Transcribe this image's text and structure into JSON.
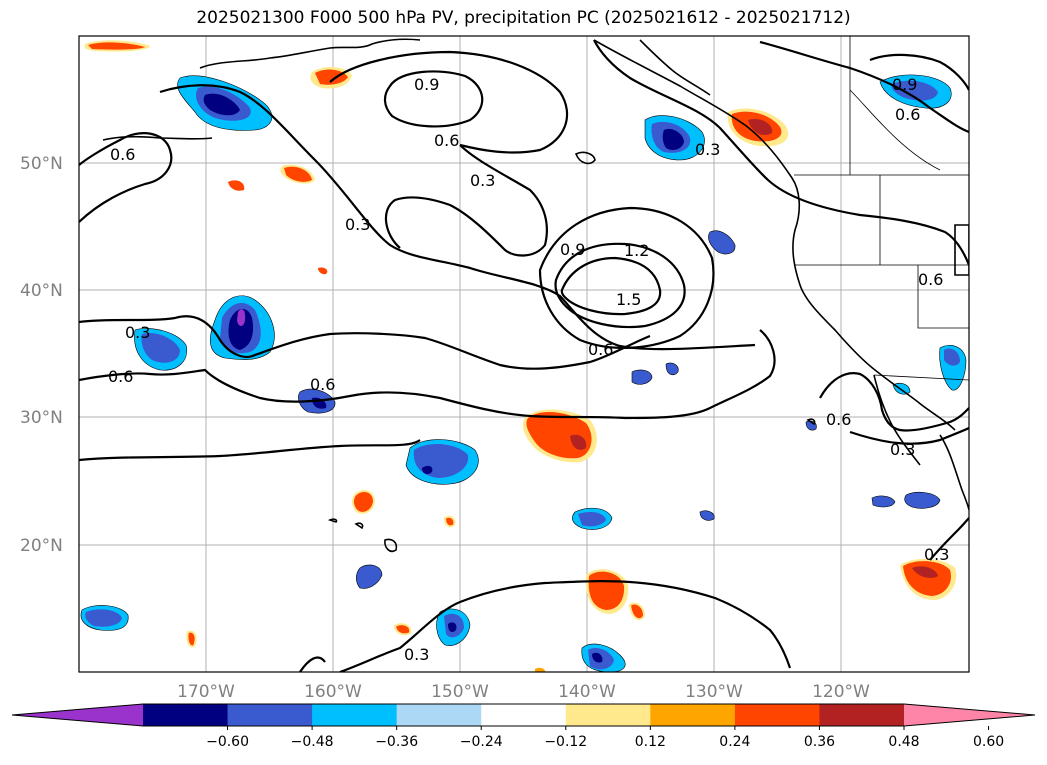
{
  "title": "2025021300 F000 500 hPa PV, precipitation PC (2025021612 - 2025021712)",
  "lat_ticks": [
    "50°N",
    "40°N",
    "30°N",
    "20°N"
  ],
  "lon_ticks": [
    "170°W",
    "160°W",
    "150°W",
    "140°W",
    "130°W",
    "120°W"
  ],
  "colorbar": {
    "ticks": [
      "−0.60",
      "−0.48",
      "−0.36",
      "−0.24",
      "−0.12",
      "0.12",
      "0.24",
      "0.36",
      "0.48",
      "0.60"
    ],
    "colors": [
      "#9933cc",
      "#000080",
      "#3a5bd0",
      "#00bfff",
      "#add8f5",
      "#ffffff",
      "#ffe98c",
      "#ffa500",
      "#ff4500",
      "#b22222",
      "#ff85a8"
    ]
  },
  "contour_labels": [
    "0.9",
    "0.6",
    "0.3",
    "1.2",
    "1.5"
  ]
}
